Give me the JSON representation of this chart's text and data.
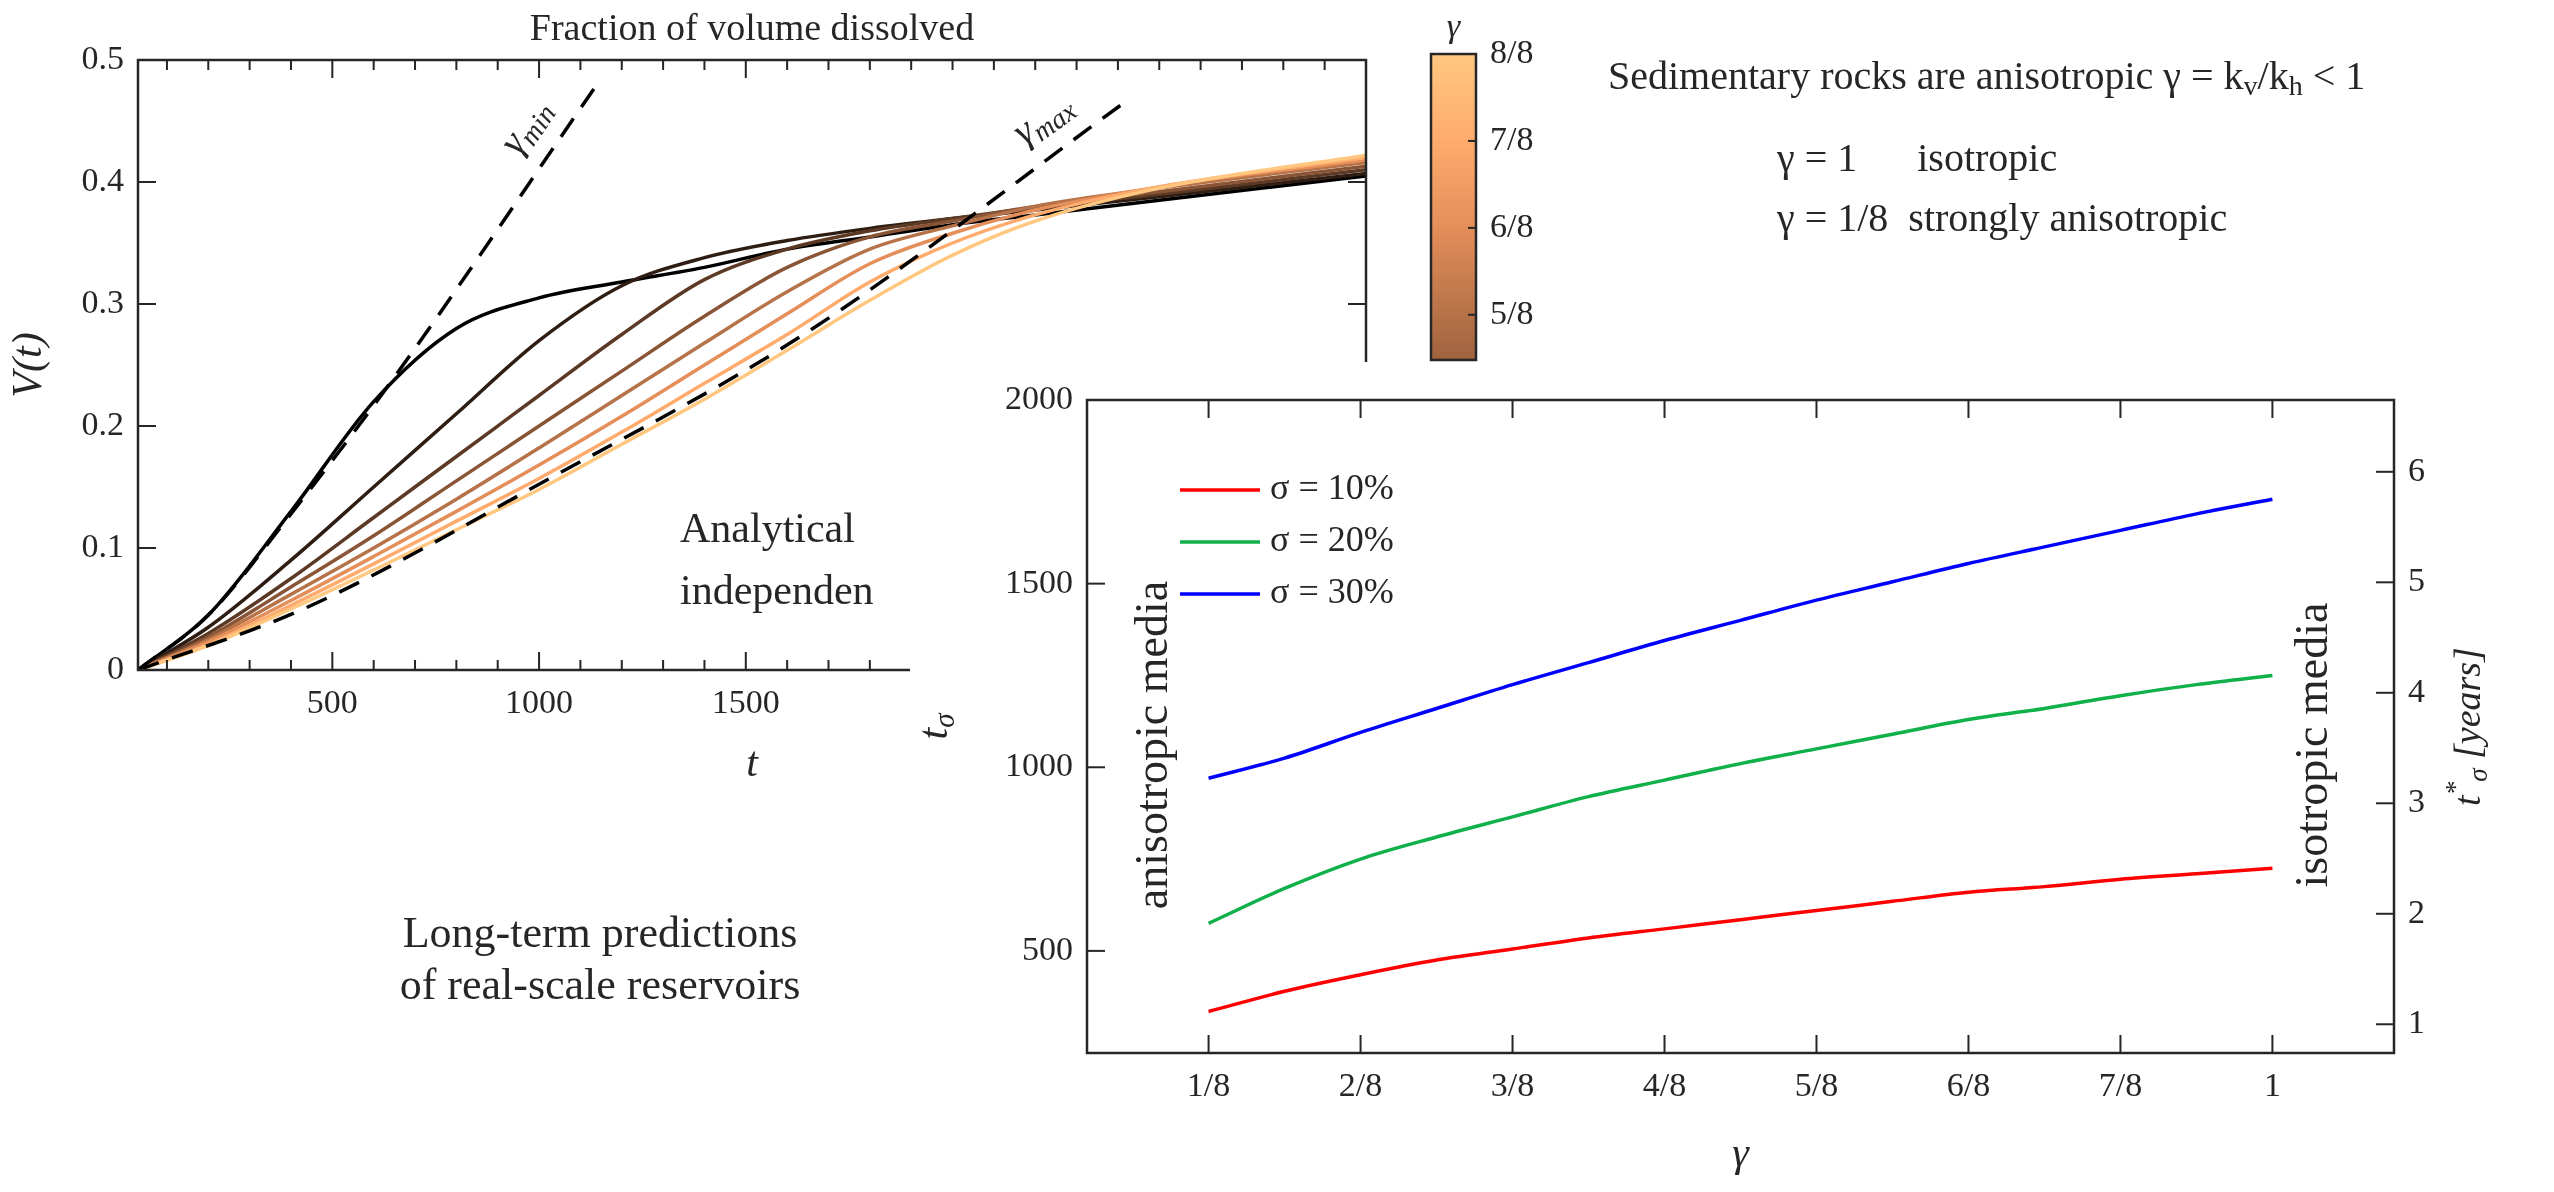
{
  "chart_data": [
    {
      "type": "line",
      "title": "Fraction of volume dissolved",
      "xlabel": "t",
      "ylabel": "V(t)",
      "clabel": "γ",
      "clim": [
        0.56,
        1
      ],
      "cticks": [
        {
          "value": 0.625,
          "label": "5/8"
        },
        {
          "value": 0.75,
          "label": "6/8"
        },
        {
          "value": 0.875,
          "label": "7/8"
        },
        {
          "value": 1,
          "label": "8/8"
        }
      ],
      "xlim": [
        30,
        3000
      ],
      "ylim": [
        0,
        0.5
      ],
      "xticks": [
        {
          "value": 100,
          "label": null
        },
        {
          "value": 200,
          "label": null
        },
        {
          "value": 300,
          "label": null
        },
        {
          "value": 400,
          "label": null
        },
        500,
        {
          "value": 600,
          "label": null
        },
        {
          "value": 700,
          "label": null
        },
        {
          "value": 800,
          "label": null
        },
        {
          "value": 900,
          "label": null
        },
        1000,
        {
          "value": 1100,
          "label": null
        },
        {
          "value": 1200,
          "label": null
        },
        {
          "value": 1300,
          "label": null
        },
        {
          "value": 1400,
          "label": null
        },
        1500,
        {
          "value": 1600,
          "label": null
        },
        {
          "value": 1700,
          "label": null
        },
        {
          "value": 1800,
          "label": null
        },
        {
          "value": 1900,
          "label": null
        },
        {
          "value": 2000,
          "label": null
        },
        {
          "value": 2100,
          "label": null
        },
        {
          "value": 2200,
          "label": null
        },
        {
          "value": 2300,
          "label": null
        },
        {
          "value": 2400,
          "label": null
        },
        {
          "value": 2500,
          "label": null
        },
        {
          "value": 2600,
          "label": null
        },
        {
          "value": 2700,
          "label": null
        },
        {
          "value": 2800,
          "label": null
        },
        {
          "value": 2900,
          "label": null
        }
      ],
      "yticks": [
        0,
        0.1,
        0.2,
        0.3,
        0.4,
        0.5
      ],
      "x": [
        30,
        200,
        400,
        600,
        800,
        1000,
        1200,
        1400,
        1600,
        1800,
        2000,
        2200,
        2500,
        3000
      ],
      "series": [
        {
          "color": "#000000",
          "values": [
            0,
            0.045,
            0.13,
            0.22,
            0.28,
            0.305,
            0.318,
            0.33,
            0.345,
            0.355,
            0.365,
            0.373,
            0.385,
            0.405
          ]
        },
        {
          "color": "#2e1d12",
          "values": [
            0,
            0.035,
            0.09,
            0.15,
            0.21,
            0.27,
            0.315,
            0.338,
            0.352,
            0.362,
            0.37,
            0.377,
            0.388,
            0.407
          ]
        },
        {
          "color": "#5b3924",
          "values": [
            0,
            0.03,
            0.075,
            0.125,
            0.175,
            0.225,
            0.275,
            0.32,
            0.345,
            0.36,
            0.37,
            0.379,
            0.39,
            0.41
          ]
        },
        {
          "color": "#895536",
          "values": [
            0,
            0.027,
            0.068,
            0.11,
            0.155,
            0.2,
            0.245,
            0.29,
            0.33,
            0.355,
            0.368,
            0.38,
            0.392,
            0.413
          ]
        },
        {
          "color": "#b67248",
          "values": [
            0,
            0.025,
            0.062,
            0.1,
            0.14,
            0.182,
            0.225,
            0.268,
            0.31,
            0.345,
            0.364,
            0.38,
            0.395,
            0.416
          ]
        },
        {
          "color": "#e48e5a",
          "values": [
            0,
            0.023,
            0.057,
            0.093,
            0.13,
            0.168,
            0.208,
            0.25,
            0.292,
            0.333,
            0.358,
            0.377,
            0.396,
            0.418
          ]
        },
        {
          "color": "#ffab6d",
          "values": [
            0,
            0.021,
            0.053,
            0.087,
            0.122,
            0.157,
            0.195,
            0.235,
            0.275,
            0.318,
            0.35,
            0.373,
            0.396,
            0.42
          ]
        },
        {
          "color": "#ffc77f",
          "values": [
            0,
            0.02,
            0.05,
            0.082,
            0.115,
            0.148,
            0.185,
            0.222,
            0.262,
            0.303,
            0.34,
            0.368,
            0.395,
            0.422
          ]
        },
        {
          "name": "γ$_{min}$",
          "color": "#000000",
          "line_style": "dashed",
          "x": [
            30,
            200,
            400,
            650,
            1140
          ],
          "values": [
            0,
            0.045,
            0.128,
            0.24,
            0.48
          ]
        },
        {
          "name": "γ$_{max}$",
          "color": "#000000",
          "line_style": "dashed",
          "x": [
            30,
            430,
            1020,
            1640,
            2415
          ],
          "values": [
            0,
            0.05,
            0.156,
            0.275,
            0.465
          ]
        }
      ],
      "annotations": [
        "Sedimentary rocks are anisotropic γ = k$_{v}$/k$_{h}$ < 1",
        "γ = 1      isotropic",
        "γ = 1/8  strongly anisotropic",
        "Analytical\nindependen",
        "Long-term predictions\nof real-scale reservoirs"
      ]
    },
    {
      "type": "line",
      "xlabel": "γ",
      "ylabel": "t$_{σ}$",
      "y2label": "t$^{*}$$_{σ}$ [years]",
      "legend": "top left",
      "xlim": [
        0.025,
        1.1
      ],
      "xticks": [
        {
          "value": 0.125,
          "label": "1/8"
        },
        {
          "value": 0.25,
          "label": "2/8"
        },
        {
          "value": 0.375,
          "label": "3/8"
        },
        {
          "value": 0.5,
          "label": "4/8"
        },
        {
          "value": 0.625,
          "label": "5/8"
        },
        {
          "value": 0.75,
          "label": "6/8"
        },
        {
          "value": 0.875,
          "label": "7/8"
        },
        1
      ],
      "ylim": [
        222,
        2000
      ],
      "yticks": [
        500,
        1000,
        1500,
        2000
      ],
      "y2lim": [
        0.74,
        6.65
      ],
      "y2ticks": [
        1,
        2,
        3,
        4,
        5,
        6
      ],
      "x": [
        0.125,
        0.1875,
        0.25,
        0.3125,
        0.375,
        0.4375,
        0.5,
        0.5625,
        0.625,
        0.6875,
        0.75,
        0.8125,
        0.875,
        0.9375,
        1
      ],
      "series": [
        {
          "name": "σ = 10%",
          "color": "#ff0000",
          "values": [
            335,
            390,
            435,
            475,
            505,
            535,
            560,
            585,
            610,
            635,
            660,
            675,
            695,
            710,
            725
          ]
        },
        {
          "name": "σ = 20%",
          "color": "#10b04a",
          "values": [
            575,
            670,
            750,
            810,
            865,
            920,
            965,
            1010,
            1050,
            1090,
            1130,
            1160,
            1195,
            1225,
            1250
          ]
        },
        {
          "name": "σ = 30%",
          "color": "#0000ff",
          "values": [
            970,
            1025,
            1095,
            1160,
            1225,
            1285,
            1345,
            1400,
            1455,
            1505,
            1555,
            1600,
            1645,
            1690,
            1730
          ]
        }
      ],
      "annotations": [
        "anisotropic media",
        "isotropic media"
      ]
    }
  ]
}
